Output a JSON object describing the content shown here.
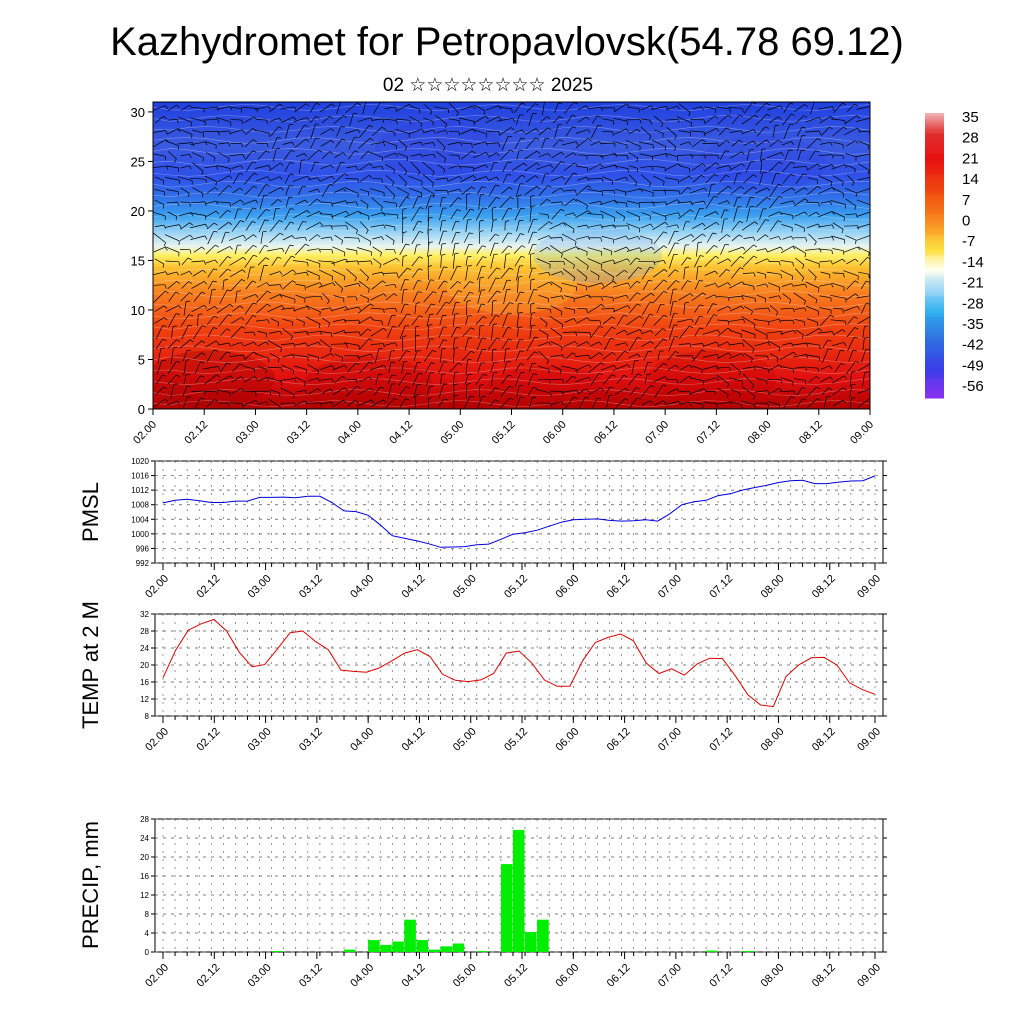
{
  "title": "Kazhydromet for Petropavlovsk(54.78 69.12)",
  "subtitle": "02 ☆☆☆☆☆☆☆☆ 2025",
  "time_ticks": [
    "02.00",
    "02.12",
    "03.00",
    "03.12",
    "04.00",
    "04.12",
    "05.00",
    "05.12",
    "06.00",
    "06.12",
    "07.00",
    "07.12",
    "08.00",
    "08.12",
    "09.00"
  ],
  "colors": {
    "pmsl_line": "#0000dd",
    "temp_line": "#dd0000",
    "precip_bar": "#00ee00",
    "grid": "#555555"
  },
  "chart_data": [
    {
      "type": "heatmap",
      "description_of_content": "temperature by height with wind vectors",
      "y_ticks": [
        0,
        5,
        10,
        15,
        20,
        25,
        30
      ],
      "ylim": [
        0,
        31
      ],
      "x": [
        "02.00",
        "02.12",
        "03.00",
        "03.12",
        "04.00",
        "04.12",
        "05.00",
        "05.12",
        "06.00",
        "06.12",
        "07.00",
        "07.12",
        "08.00",
        "08.12",
        "09.00"
      ],
      "colorbar_labels": [
        "35",
        "28",
        "21",
        "14",
        "7",
        "0",
        "-7",
        "-14",
        "-21",
        "-28",
        "-35",
        "-42",
        "-49",
        "-56"
      ],
      "colorbar_colors": [
        "#f0b0b0",
        "#e03030",
        "#e81010",
        "#f04010",
        "#f87010",
        "#f8a020",
        "#fde040",
        "#fffff0",
        "#a8dcf8",
        "#30b0f0",
        "#3070e0",
        "#3050e8",
        "#4030e8",
        "#8030f0"
      ]
    },
    {
      "type": "line",
      "ylabel": "PMSL",
      "ylim": [
        992,
        1020
      ],
      "y_ticks": [
        992,
        996,
        1000,
        1004,
        1008,
        1012,
        1016,
        1020
      ],
      "series": [
        {
          "values": [
            1008.5,
            1009.2,
            1009.5,
            1009.1,
            1008.6,
            1008.6,
            1009,
            1009,
            1010,
            1010,
            1010.1,
            1009.9,
            1010.3,
            1010.3,
            1008.6,
            1006.3,
            1006.1,
            1005.1,
            1002.5,
            999.5,
            998.8,
            998.1,
            997.3,
            996.3,
            996.4,
            996.5,
            997,
            997.2,
            998.5,
            999.9,
            1000.3,
            1001,
            1002.1,
            1003.2,
            1003.9,
            1004,
            1004.1,
            1003.7,
            1003.5,
            1003.6,
            1003.9,
            1003.5,
            1005.5,
            1008,
            1008.8,
            1009.2,
            1010.5,
            1011,
            1012,
            1012.7,
            1013.3,
            1014.1,
            1014.6,
            1014.7,
            1013.8,
            1013.8,
            1014.2,
            1014.5,
            1014.6,
            1015.9
          ]
        }
      ]
    },
    {
      "type": "line",
      "ylabel": "TEMP at 2 M",
      "ylim": [
        8,
        32
      ],
      "y_ticks": [
        8,
        12,
        16,
        20,
        24,
        28,
        32
      ],
      "series": [
        {
          "values": [
            17,
            23.5,
            28.2,
            29.7,
            30.7,
            28,
            23,
            19.6,
            20.1,
            23.8,
            27.6,
            28,
            25.5,
            23.6,
            18.8,
            18.5,
            18.3,
            19.3,
            21,
            22.8,
            23.6,
            22,
            17.8,
            16.4,
            16.1,
            16.5,
            18,
            22.8,
            23.3,
            20.5,
            16.5,
            15,
            15,
            21,
            25.3,
            26.5,
            27.3,
            25.7,
            20.5,
            18,
            19.1,
            17.6,
            20.2,
            21.6,
            21.5,
            17.5,
            13,
            10.6,
            10.2,
            17.3,
            20,
            21.7,
            21.8,
            20,
            15.8,
            14.2,
            13.1
          ]
        }
      ]
    },
    {
      "type": "bar",
      "ylabel": "PRECIP, mm",
      "ylim": [
        0,
        28
      ],
      "y_ticks": [
        0,
        4,
        8,
        12,
        16,
        20,
        24,
        28
      ],
      "bars": [
        {
          "index": 9,
          "value": 0.2
        },
        {
          "index": 15,
          "value": 0.5
        },
        {
          "index": 17,
          "value": 2.5
        },
        {
          "index": 18,
          "value": 1.5
        },
        {
          "index": 19,
          "value": 2.2
        },
        {
          "index": 20,
          "value": 6.8
        },
        {
          "index": 21,
          "value": 2.5
        },
        {
          "index": 22,
          "value": 0.5
        },
        {
          "index": 23,
          "value": 1.2
        },
        {
          "index": 24,
          "value": 1.8
        },
        {
          "index": 26,
          "value": 0.2
        },
        {
          "index": 28,
          "value": 18.5
        },
        {
          "index": 29,
          "value": 25.7
        },
        {
          "index": 30,
          "value": 4.2
        },
        {
          "index": 31,
          "value": 6.8
        },
        {
          "index": 45,
          "value": 0.3
        },
        {
          "index": 48,
          "value": 0.2
        }
      ]
    }
  ]
}
